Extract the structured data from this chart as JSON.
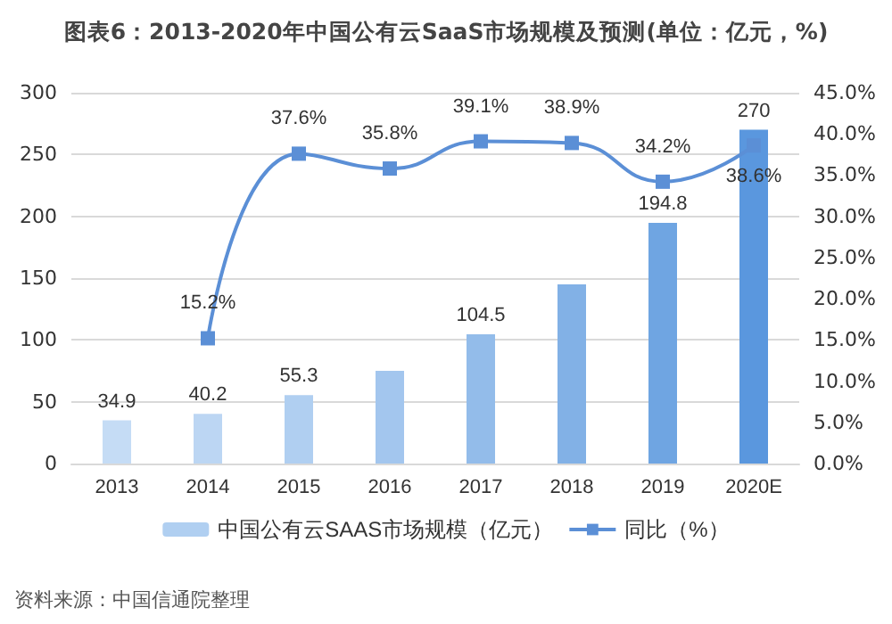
{
  "chart_data": {
    "type": "bar",
    "title": "图表6：2013-2020年中国公有云SaaS市场规模及预测(单位：亿元，%)",
    "categories": [
      "2013",
      "2014",
      "2015",
      "2016",
      "2017",
      "2018",
      "2019",
      "2020E"
    ],
    "series": [
      {
        "name": "中国公有云SAAS市场规模（亿元）",
        "colors": [
          "#c5dcf5",
          "#bcd6f3",
          "#b0cff1",
          "#a3c6ee",
          "#93bcea",
          "#82b1e6",
          "#6fa5e2",
          "#5a97de"
        ],
        "color": "#b0cff1",
        "values": [
          34.9,
          40.2,
          55.3,
          75,
          104.5,
          145,
          194.8,
          270
        ],
        "value_labels": [
          "34.9",
          "40.2",
          "55.3",
          null,
          "104.5",
          null,
          "194.8",
          "270"
        ]
      },
      {
        "name": "同比（%）",
        "type": "line",
        "axis": "y2",
        "color": "#5b8fd6",
        "values": [
          null,
          15.2,
          37.6,
          35.8,
          39.1,
          38.9,
          34.2,
          38.6
        ],
        "value_labels": [
          null,
          "15.2%",
          "37.6%",
          "35.8%",
          "39.1%",
          "38.9%",
          "34.2%",
          "38.6%"
        ]
      }
    ],
    "ylim": [
      0,
      300
    ],
    "yticks": [
      0,
      50,
      100,
      150,
      200,
      250,
      300
    ],
    "y2lim": [
      0,
      45
    ],
    "y2ticks": [
      {
        "value": 0,
        "label": "0.0%"
      },
      {
        "value": 5,
        "label": "5.0%"
      },
      {
        "value": 10,
        "label": "10.0%"
      },
      {
        "value": 15,
        "label": "15.0%"
      },
      {
        "value": 20,
        "label": "20.0%"
      },
      {
        "value": 25,
        "label": "25.0%"
      },
      {
        "value": 30,
        "label": "30.0%"
      },
      {
        "value": 35,
        "label": "35.0%"
      },
      {
        "value": 40,
        "label": "40.0%"
      },
      {
        "value": 45,
        "label": "45.0%"
      }
    ],
    "grid": "y",
    "legend": "bottom",
    "marker": "square",
    "line_style": "solid",
    "annotations": [
      "资料来源：中国信通院整理"
    ]
  }
}
